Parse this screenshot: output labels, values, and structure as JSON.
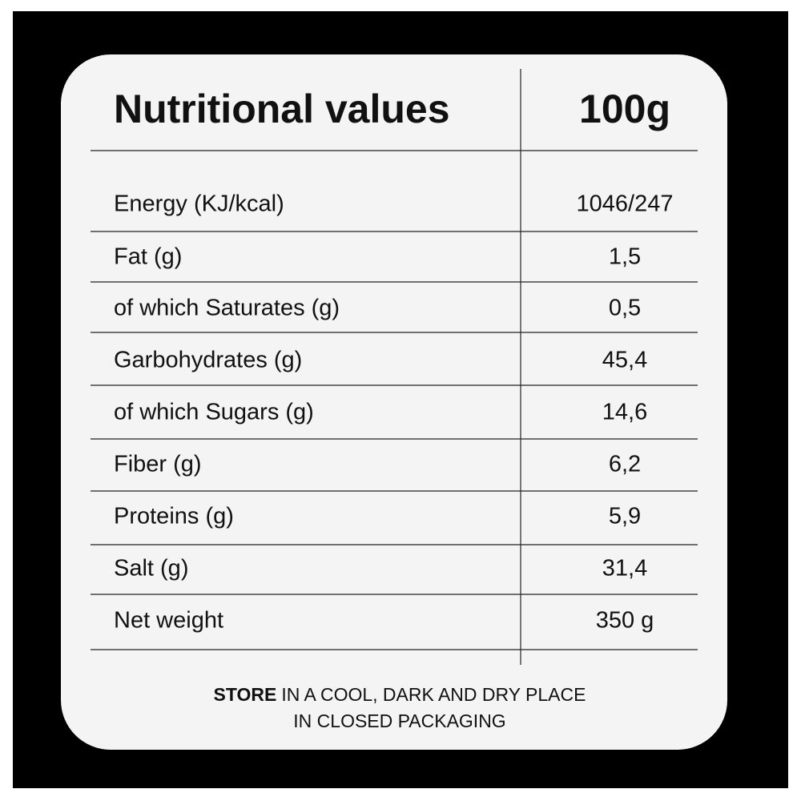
{
  "header": {
    "title": "Nutritional values",
    "amount": "100g"
  },
  "table": {
    "rows": [
      [
        "Energy (KJ/kcal)",
        "1046/247"
      ],
      [
        "Fat (g)",
        "1,5"
      ],
      [
        "of which Saturates (g)",
        "0,5"
      ],
      [
        "Garbohydrates (g)",
        "45,4"
      ],
      [
        "of which Sugars (g)",
        "14,6"
      ],
      [
        "Fiber (g)",
        "6,2"
      ],
      [
        "Proteins (g)",
        "5,9"
      ],
      [
        "Salt (g)",
        "31,4"
      ],
      [
        "Net weight",
        "350 g"
      ]
    ]
  },
  "footer": {
    "line1": {
      "bold": "STORE",
      "rest": "IN A COOL, DARK AND DRY PLACE"
    },
    "line2": "IN CLOSED PACKAGING"
  }
}
